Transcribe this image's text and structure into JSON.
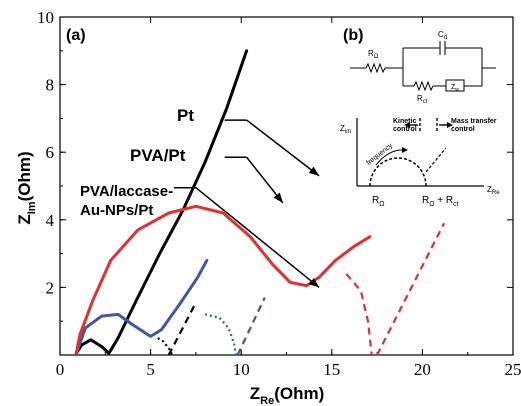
{
  "chart_data": {
    "type": "line",
    "panel_label_a": "(a)",
    "panel_label_b": "(b)",
    "xlabel": "Z",
    "xlabel_sub": "Re",
    "xlabel_unit": "(Ohm)",
    "ylabel": "Z",
    "ylabel_sub": "Im",
    "ylabel_unit": "(Ohm)",
    "xlim": [
      0,
      25
    ],
    "ylim": [
      0,
      10
    ],
    "x_ticks": [
      "0",
      "5",
      "10",
      "15",
      "20",
      "25"
    ],
    "y_ticks": [
      "2",
      "4",
      "6",
      "8",
      "10"
    ],
    "series": [
      {
        "name": "Pt",
        "color": "#000000",
        "style": "solid",
        "points": [
          [
            0.9,
            0.05
          ],
          [
            1.2,
            0.3
          ],
          [
            1.7,
            0.45
          ],
          [
            2.3,
            0.25
          ],
          [
            2.6,
            0.1
          ],
          [
            2.7,
            0.05
          ],
          [
            3.2,
            0.5
          ],
          [
            4.2,
            1.6
          ],
          [
            5.5,
            3.0
          ],
          [
            6.8,
            4.3
          ],
          [
            8.0,
            5.7
          ],
          [
            9.2,
            7.3
          ],
          [
            10.3,
            9.0
          ]
        ]
      },
      {
        "name": "PVA/Pt",
        "color": "#3f55a8",
        "style": "solid",
        "points": [
          [
            0.9,
            0.05
          ],
          [
            1.4,
            0.8
          ],
          [
            2.3,
            1.15
          ],
          [
            3.2,
            1.2
          ],
          [
            4.0,
            0.9
          ],
          [
            5.0,
            0.55
          ],
          [
            5.6,
            0.75
          ],
          [
            6.6,
            1.5
          ],
          [
            7.6,
            2.3
          ],
          [
            8.1,
            2.8
          ]
        ]
      },
      {
        "name": "PVA/laccase-Au-NPs/Pt",
        "color": "#e03030",
        "style": "solid",
        "points": [
          [
            0.9,
            0.05
          ],
          [
            1.1,
            0.6
          ],
          [
            1.8,
            1.6
          ],
          [
            2.8,
            2.8
          ],
          [
            4.3,
            3.7
          ],
          [
            6.0,
            4.2
          ],
          [
            7.5,
            4.4
          ],
          [
            9.0,
            4.2
          ],
          [
            10.5,
            3.5
          ],
          [
            11.7,
            2.7
          ],
          [
            12.7,
            2.15
          ],
          [
            13.6,
            2.05
          ],
          [
            14.3,
            2.3
          ],
          [
            15.2,
            2.8
          ],
          [
            16.2,
            3.2
          ],
          [
            17.1,
            3.5
          ]
        ]
      },
      {
        "name": "",
        "color": "#000000",
        "style": "dotted",
        "points": [
          [
            5.4,
            0.5
          ],
          [
            5.7,
            0.4
          ],
          [
            6.0,
            0.2
          ],
          [
            6.2,
            0.0
          ]
        ]
      },
      {
        "name": "",
        "color": "#000000",
        "style": "dashed",
        "points": [
          [
            6.0,
            0.0
          ],
          [
            7.5,
            1.55
          ]
        ]
      },
      {
        "name": "",
        "color": "#3f55a8",
        "style": "dotted",
        "points": [
          [
            8.0,
            1.2
          ],
          [
            8.8,
            1.1
          ],
          [
            9.3,
            0.8
          ],
          [
            9.6,
            0.35
          ],
          [
            9.7,
            0.0
          ]
        ]
      },
      {
        "name": "",
        "color": "#3f55a8",
        "style": "dashed",
        "points": [
          [
            9.8,
            0.0
          ],
          [
            11.3,
            1.7
          ]
        ]
      },
      {
        "name": "",
        "color": "#e03030",
        "style": "dashed",
        "points": [
          [
            15.8,
            2.4
          ],
          [
            16.6,
            1.9
          ],
          [
            17.0,
            1.0
          ],
          [
            17.2,
            0.0
          ]
        ]
      },
      {
        "name": "",
        "color": "#e03030",
        "style": "dashed",
        "points": [
          [
            17.5,
            0.0
          ],
          [
            21.2,
            3.9
          ]
        ]
      }
    ],
    "annotations": [
      {
        "text": "Pt",
        "arrow_from": [
          10.3,
          6.95
        ],
        "arrow_to": [
          14.3,
          5.3
        ]
      },
      {
        "text": "PVA/Pt",
        "arrow_from": [
          10.3,
          5.85
        ],
        "arrow_to": [
          12.3,
          4.5
        ]
      },
      {
        "text": "PVA/laccase-",
        "text2": "Au-NPs/Pt",
        "arrow_from": [
          7.5,
          4.95
        ],
        "arrow_to": [
          14.3,
          2.0
        ]
      }
    ],
    "inset": {
      "r_omega": "R",
      "r_omega_sub": "Ω",
      "c_d": "C",
      "c_d_sub": "d",
      "r_ct": "R",
      "r_ct_sub": "ct",
      "z_w": "Z",
      "z_w_sub": "w",
      "kinetic_1": "Kinetic",
      "kinetic_2": "control",
      "mass_1": "Mass transfer",
      "mass_2": "control",
      "frequency": "frequency",
      "zim": "Z",
      "zim_sub": "im",
      "zre": "Z",
      "zre_sub": "Re",
      "bottom_left": "R",
      "bottom_left_sub": "Ω",
      "bottom_right_a": "R",
      "bottom_right_a_sub": "Ω",
      "bottom_right_plus": " + R",
      "bottom_right_sub2": "ct"
    }
  }
}
